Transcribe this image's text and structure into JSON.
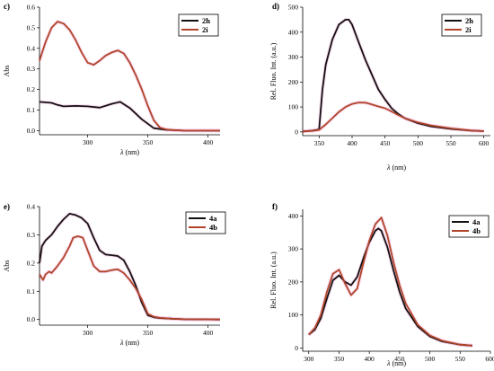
{
  "colors": {
    "black_series": "#111111",
    "red_series": "#b0452a",
    "highlight": "#f6c6e4"
  },
  "chart_data": [
    {
      "panel": "c)",
      "type": "line",
      "ylabel": "Abs",
      "xlabel": "λ (nm)",
      "xlim": [
        260,
        410
      ],
      "ylim": [
        -0.02,
        0.6
      ],
      "xticks": [
        300,
        350,
        400
      ],
      "yticks": [
        0.0,
        0.1,
        0.2,
        0.3,
        0.4,
        0.5,
        0.6
      ],
      "ytick_labels": [
        "0.0",
        "0.1",
        "0.2",
        "0.3",
        "0.4",
        "0.5",
        "0.6"
      ],
      "legend_position": "top-right",
      "series": [
        {
          "name": "2h",
          "color": "#111111",
          "x": [
            260,
            270,
            275,
            280,
            290,
            300,
            310,
            320,
            327,
            335,
            345,
            355,
            365,
            380,
            410
          ],
          "y": [
            0.14,
            0.135,
            0.125,
            0.118,
            0.12,
            0.118,
            0.112,
            0.13,
            0.14,
            0.11,
            0.055,
            0.012,
            0.004,
            0.0,
            0.0
          ]
        },
        {
          "name": "2i",
          "color": "#b0452a",
          "x": [
            260,
            265,
            270,
            275,
            280,
            285,
            290,
            295,
            300,
            305,
            310,
            315,
            320,
            325,
            330,
            335,
            340,
            345,
            350,
            355,
            360,
            365,
            370,
            380,
            410
          ],
          "y": [
            0.34,
            0.43,
            0.5,
            0.53,
            0.52,
            0.49,
            0.44,
            0.38,
            0.33,
            0.32,
            0.34,
            0.365,
            0.38,
            0.39,
            0.375,
            0.33,
            0.27,
            0.2,
            0.12,
            0.05,
            0.015,
            0.006,
            0.003,
            0.0,
            0.0
          ]
        }
      ]
    },
    {
      "panel": "d)",
      "type": "line",
      "ylabel": "Rel. Fluo. Int. (a.u.)",
      "xlabel": "λ (nm)",
      "xlim": [
        325,
        610
      ],
      "ylim": [
        -15,
        500
      ],
      "xticks": [
        350,
        400,
        450,
        500,
        550,
        600
      ],
      "yticks": [
        0,
        100,
        200,
        300,
        400,
        500
      ],
      "legend_position": "top-right",
      "series": [
        {
          "name": "2h",
          "color": "#111111",
          "x": [
            325,
            340,
            350,
            355,
            360,
            370,
            380,
            390,
            395,
            400,
            410,
            420,
            430,
            440,
            450,
            460,
            470,
            480,
            500,
            520,
            550,
            580,
            600
          ],
          "y": [
            2,
            5,
            10,
            170,
            270,
            370,
            430,
            450,
            450,
            430,
            360,
            290,
            230,
            170,
            130,
            95,
            72,
            55,
            35,
            22,
            12,
            5,
            3
          ]
        },
        {
          "name": "2i",
          "color": "#b0452a",
          "x": [
            325,
            340,
            350,
            360,
            370,
            380,
            390,
            400,
            410,
            420,
            430,
            440,
            450,
            460,
            470,
            480,
            500,
            520,
            550,
            580,
            600
          ],
          "y": [
            2,
            4,
            8,
            30,
            55,
            80,
            100,
            112,
            118,
            117,
            110,
            102,
            95,
            82,
            68,
            55,
            38,
            26,
            14,
            6,
            3
          ]
        }
      ]
    },
    {
      "panel": "e)",
      "type": "line",
      "ylabel": "Abs",
      "xlabel": "λ (nm)",
      "xlim": [
        260,
        410
      ],
      "ylim": [
        -0.02,
        0.4
      ],
      "xticks": [
        300,
        350,
        400
      ],
      "yticks": [
        0.0,
        0.1,
        0.2,
        0.3,
        0.4
      ],
      "ytick_labels": [
        "0.0",
        "0.1",
        "0.2",
        "0.3",
        "0.4"
      ],
      "legend_position": "top-right",
      "series": [
        {
          "name": "4a",
          "color": "#111111",
          "x": [
            260,
            262,
            265,
            270,
            275,
            280,
            285,
            290,
            295,
            300,
            305,
            310,
            315,
            320,
            325,
            330,
            335,
            340,
            345,
            350,
            355,
            360,
            370,
            380,
            410
          ],
          "y": [
            0.2,
            0.26,
            0.28,
            0.3,
            0.33,
            0.355,
            0.375,
            0.37,
            0.36,
            0.34,
            0.29,
            0.245,
            0.23,
            0.228,
            0.225,
            0.21,
            0.17,
            0.12,
            0.06,
            0.015,
            0.008,
            0.005,
            0.003,
            0.001,
            0.0
          ]
        },
        {
          "name": "4b",
          "color": "#b0452a",
          "x": [
            260,
            263,
            265,
            268,
            270,
            275,
            280,
            285,
            288,
            292,
            296,
            300,
            305,
            310,
            315,
            320,
            325,
            330,
            335,
            340,
            345,
            350,
            355,
            360,
            370,
            380,
            410
          ],
          "y": [
            0.16,
            0.14,
            0.16,
            0.17,
            0.165,
            0.19,
            0.22,
            0.26,
            0.29,
            0.295,
            0.29,
            0.245,
            0.19,
            0.17,
            0.17,
            0.175,
            0.178,
            0.165,
            0.14,
            0.11,
            0.07,
            0.02,
            0.01,
            0.006,
            0.003,
            0.001,
            0.0
          ]
        }
      ]
    },
    {
      "panel": "f)",
      "type": "line",
      "ylabel": "Rel. Fluo. Int. (a.u.)",
      "xlabel": "λ (nm)",
      "xlim": [
        290,
        600
      ],
      "ylim": [
        -10,
        420
      ],
      "xticks": [
        300,
        350,
        400,
        450,
        500,
        550,
        600
      ],
      "yticks": [
        0,
        100,
        200,
        300,
        400
      ],
      "legend_position": "top-right",
      "series": [
        {
          "name": "4a",
          "color": "#111111",
          "x": [
            300,
            310,
            320,
            330,
            340,
            350,
            360,
            370,
            380,
            390,
            400,
            410,
            415,
            420,
            430,
            440,
            450,
            460,
            480,
            500,
            520,
            550,
            570
          ],
          "y": [
            40,
            55,
            90,
            150,
            205,
            220,
            200,
            190,
            215,
            270,
            320,
            355,
            362,
            355,
            305,
            235,
            170,
            120,
            65,
            35,
            20,
            10,
            7
          ]
        },
        {
          "name": "4b",
          "color": "#b0452a",
          "x": [
            300,
            310,
            320,
            330,
            340,
            350,
            360,
            370,
            380,
            390,
            400,
            410,
            420,
            430,
            440,
            450,
            460,
            480,
            500,
            520,
            550,
            570
          ],
          "y": [
            40,
            60,
            100,
            170,
            225,
            237,
            195,
            160,
            180,
            255,
            325,
            375,
            395,
            340,
            260,
            190,
            135,
            70,
            38,
            22,
            10,
            7
          ]
        }
      ]
    }
  ]
}
